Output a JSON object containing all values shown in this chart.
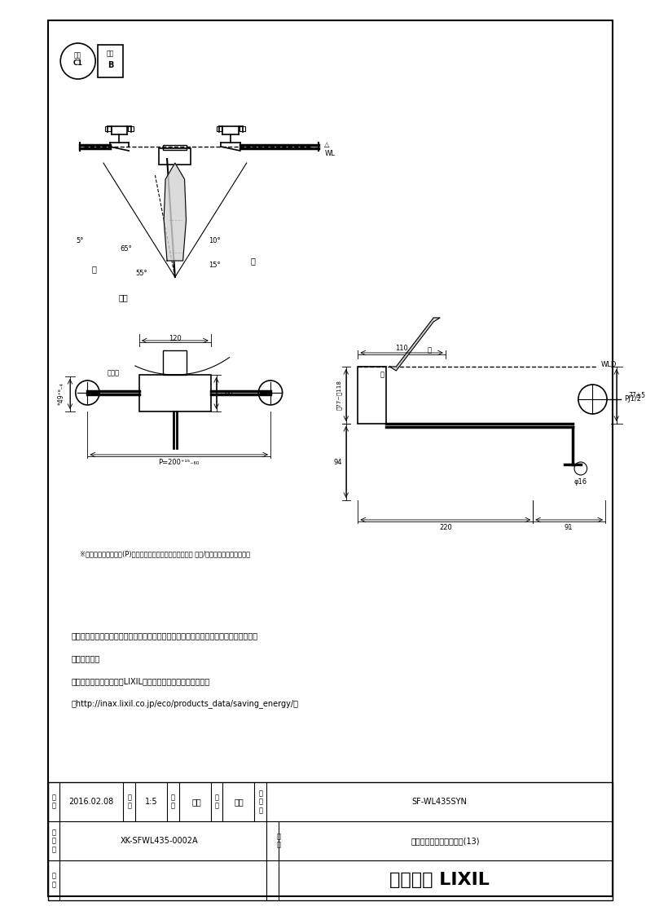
{
  "page_bg": "#ffffff",
  "border_color": "#000000",
  "line_color": "#000000",
  "title_text": "",
  "notes": [
    "・流量調節栓は取付脚に付いています。取替えの際は、取付脚ごと交換してください。",
    "・（水抜式）",
    "・節湯記号については、LIXILホームページを参照ください。",
    "（http://inax.lixil.co.jp/eco/products_data/saving_energy/）"
  ],
  "note_small": "※印寝法は配管ピッチ(P)が最大〜最小の場合を（標準寝法 最大/最小）で示しています。",
  "table": {
    "date_label": "日付",
    "date_value": "2016.02.08",
    "scale_label": "尺度",
    "scale_value": "1:5",
    "draw_label": "製図",
    "draw_value": "宮本",
    "check_label": "検図",
    "check_value": "池川",
    "part_num_label": "品番号",
    "part_num_value": "SF-WL435SYN",
    "drawing_num_label": "図番号",
    "drawing_num_value": "XK-SFWL435-0002A",
    "part_name_label": "品名",
    "part_name_value": "シングルレバー混合水栓(13)",
    "備考": "備考",
    "company": "株式会示 LIXIL"
  }
}
